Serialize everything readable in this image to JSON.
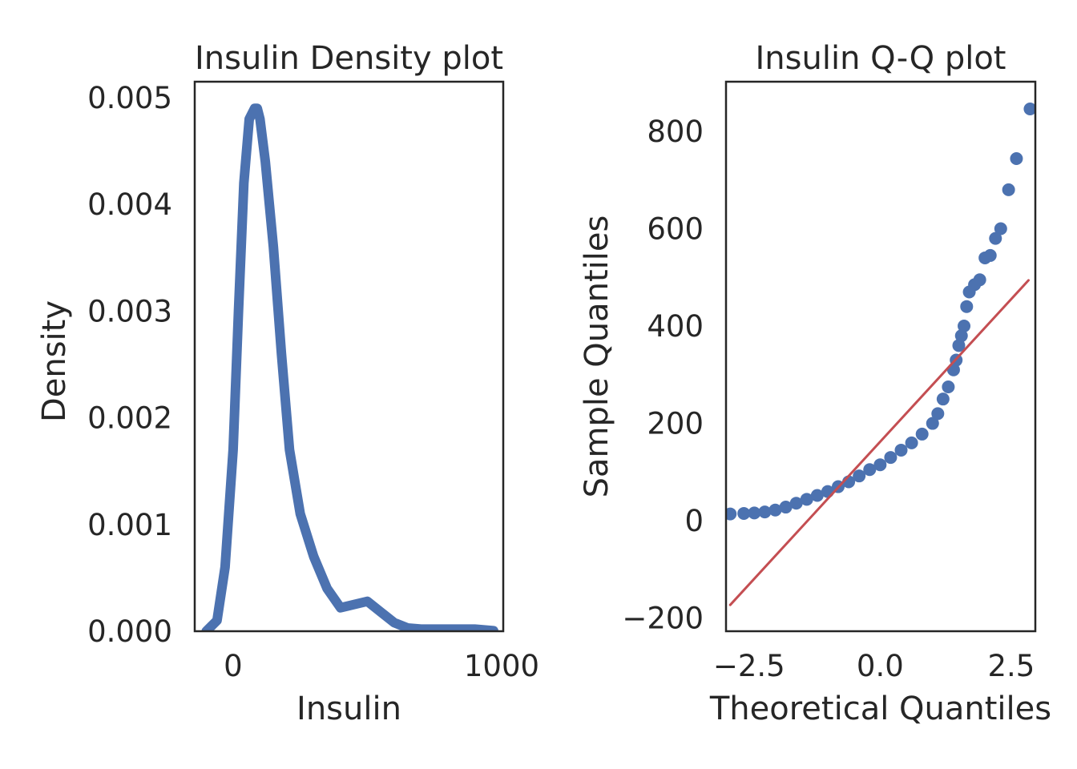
{
  "chart_data": [
    {
      "type": "line",
      "title": "Insulin Density plot",
      "x_label": "Insulin",
      "y_label": "Density",
      "x": [
        -100,
        -60,
        -30,
        0,
        20,
        40,
        60,
        80,
        90,
        100,
        120,
        150,
        180,
        210,
        250,
        300,
        350,
        400,
        450,
        500,
        550,
        600,
        650,
        700,
        800,
        900,
        970
      ],
      "values": [
        0,
        0.0001,
        0.0006,
        0.0017,
        0.003,
        0.0042,
        0.0048,
        0.0049,
        0.0049,
        0.0048,
        0.0044,
        0.0036,
        0.0026,
        0.0017,
        0.0011,
        0.0007,
        0.0004,
        0.00022,
        0.00025,
        0.00028,
        0.00018,
        8e-05,
        3e-05,
        2e-05,
        2e-05,
        2e-05,
        5e-06
      ],
      "color": "#4c72b0",
      "xlim": [
        -143,
        1006
      ],
      "xticks": [
        0,
        1000
      ],
      "ylim": [
        0,
        0.00515
      ],
      "yticks": [
        {
          "value": 0,
          "label": "0.000"
        },
        {
          "value": 0.001,
          "label": "0.001"
        },
        {
          "value": 0.002,
          "label": "0.002"
        },
        {
          "value": 0.003,
          "label": "0.003"
        },
        {
          "value": 0.004,
          "label": "0.004"
        },
        {
          "value": 0.005,
          "label": "0.005"
        }
      ],
      "grid": false
    },
    {
      "type": "scatter",
      "title": "Insulin Q-Q plot",
      "x_label": "Theoretical Quantiles",
      "y_label": "Sample Quantiles",
      "x": [
        -2.86,
        -2.6,
        -2.4,
        -2.2,
        -2.0,
        -1.8,
        -1.6,
        -1.4,
        -1.2,
        -1.0,
        -0.8,
        -0.6,
        -0.4,
        -0.2,
        0,
        0.2,
        0.4,
        0.6,
        0.8,
        1.0,
        1.1,
        1.2,
        1.3,
        1.4,
        1.45,
        1.5,
        1.55,
        1.6,
        1.65,
        1.7,
        1.8,
        1.9,
        2.0,
        2.1,
        2.2,
        2.3,
        2.45,
        2.6,
        2.86
      ],
      "values": [
        14,
        15,
        16,
        18,
        22,
        28,
        36,
        44,
        52,
        60,
        70,
        80,
        92,
        105,
        115,
        130,
        145,
        160,
        178,
        200,
        220,
        250,
        275,
        310,
        330,
        360,
        380,
        400,
        440,
        470,
        485,
        495,
        540,
        545,
        580,
        600,
        680,
        744,
        846
      ],
      "color": "#4c72b0",
      "line": {
        "x": [
          -2.86,
          2.83
        ],
        "values": [
          -173,
          494
        ],
        "color": "#c44e52"
      },
      "xlim": [
        -2.94,
        2.96
      ],
      "xticks": [
        {
          "value": -2.5,
          "label": "−2.5"
        },
        {
          "value": 0,
          "label": "0.0"
        },
        {
          "value": 2.5,
          "label": "2.5"
        }
      ],
      "ylim": [
        -227,
        902
      ],
      "yticks": [
        {
          "value": -200,
          "label": "−200"
        },
        0,
        200,
        400,
        600,
        800
      ],
      "grid": false
    }
  ]
}
